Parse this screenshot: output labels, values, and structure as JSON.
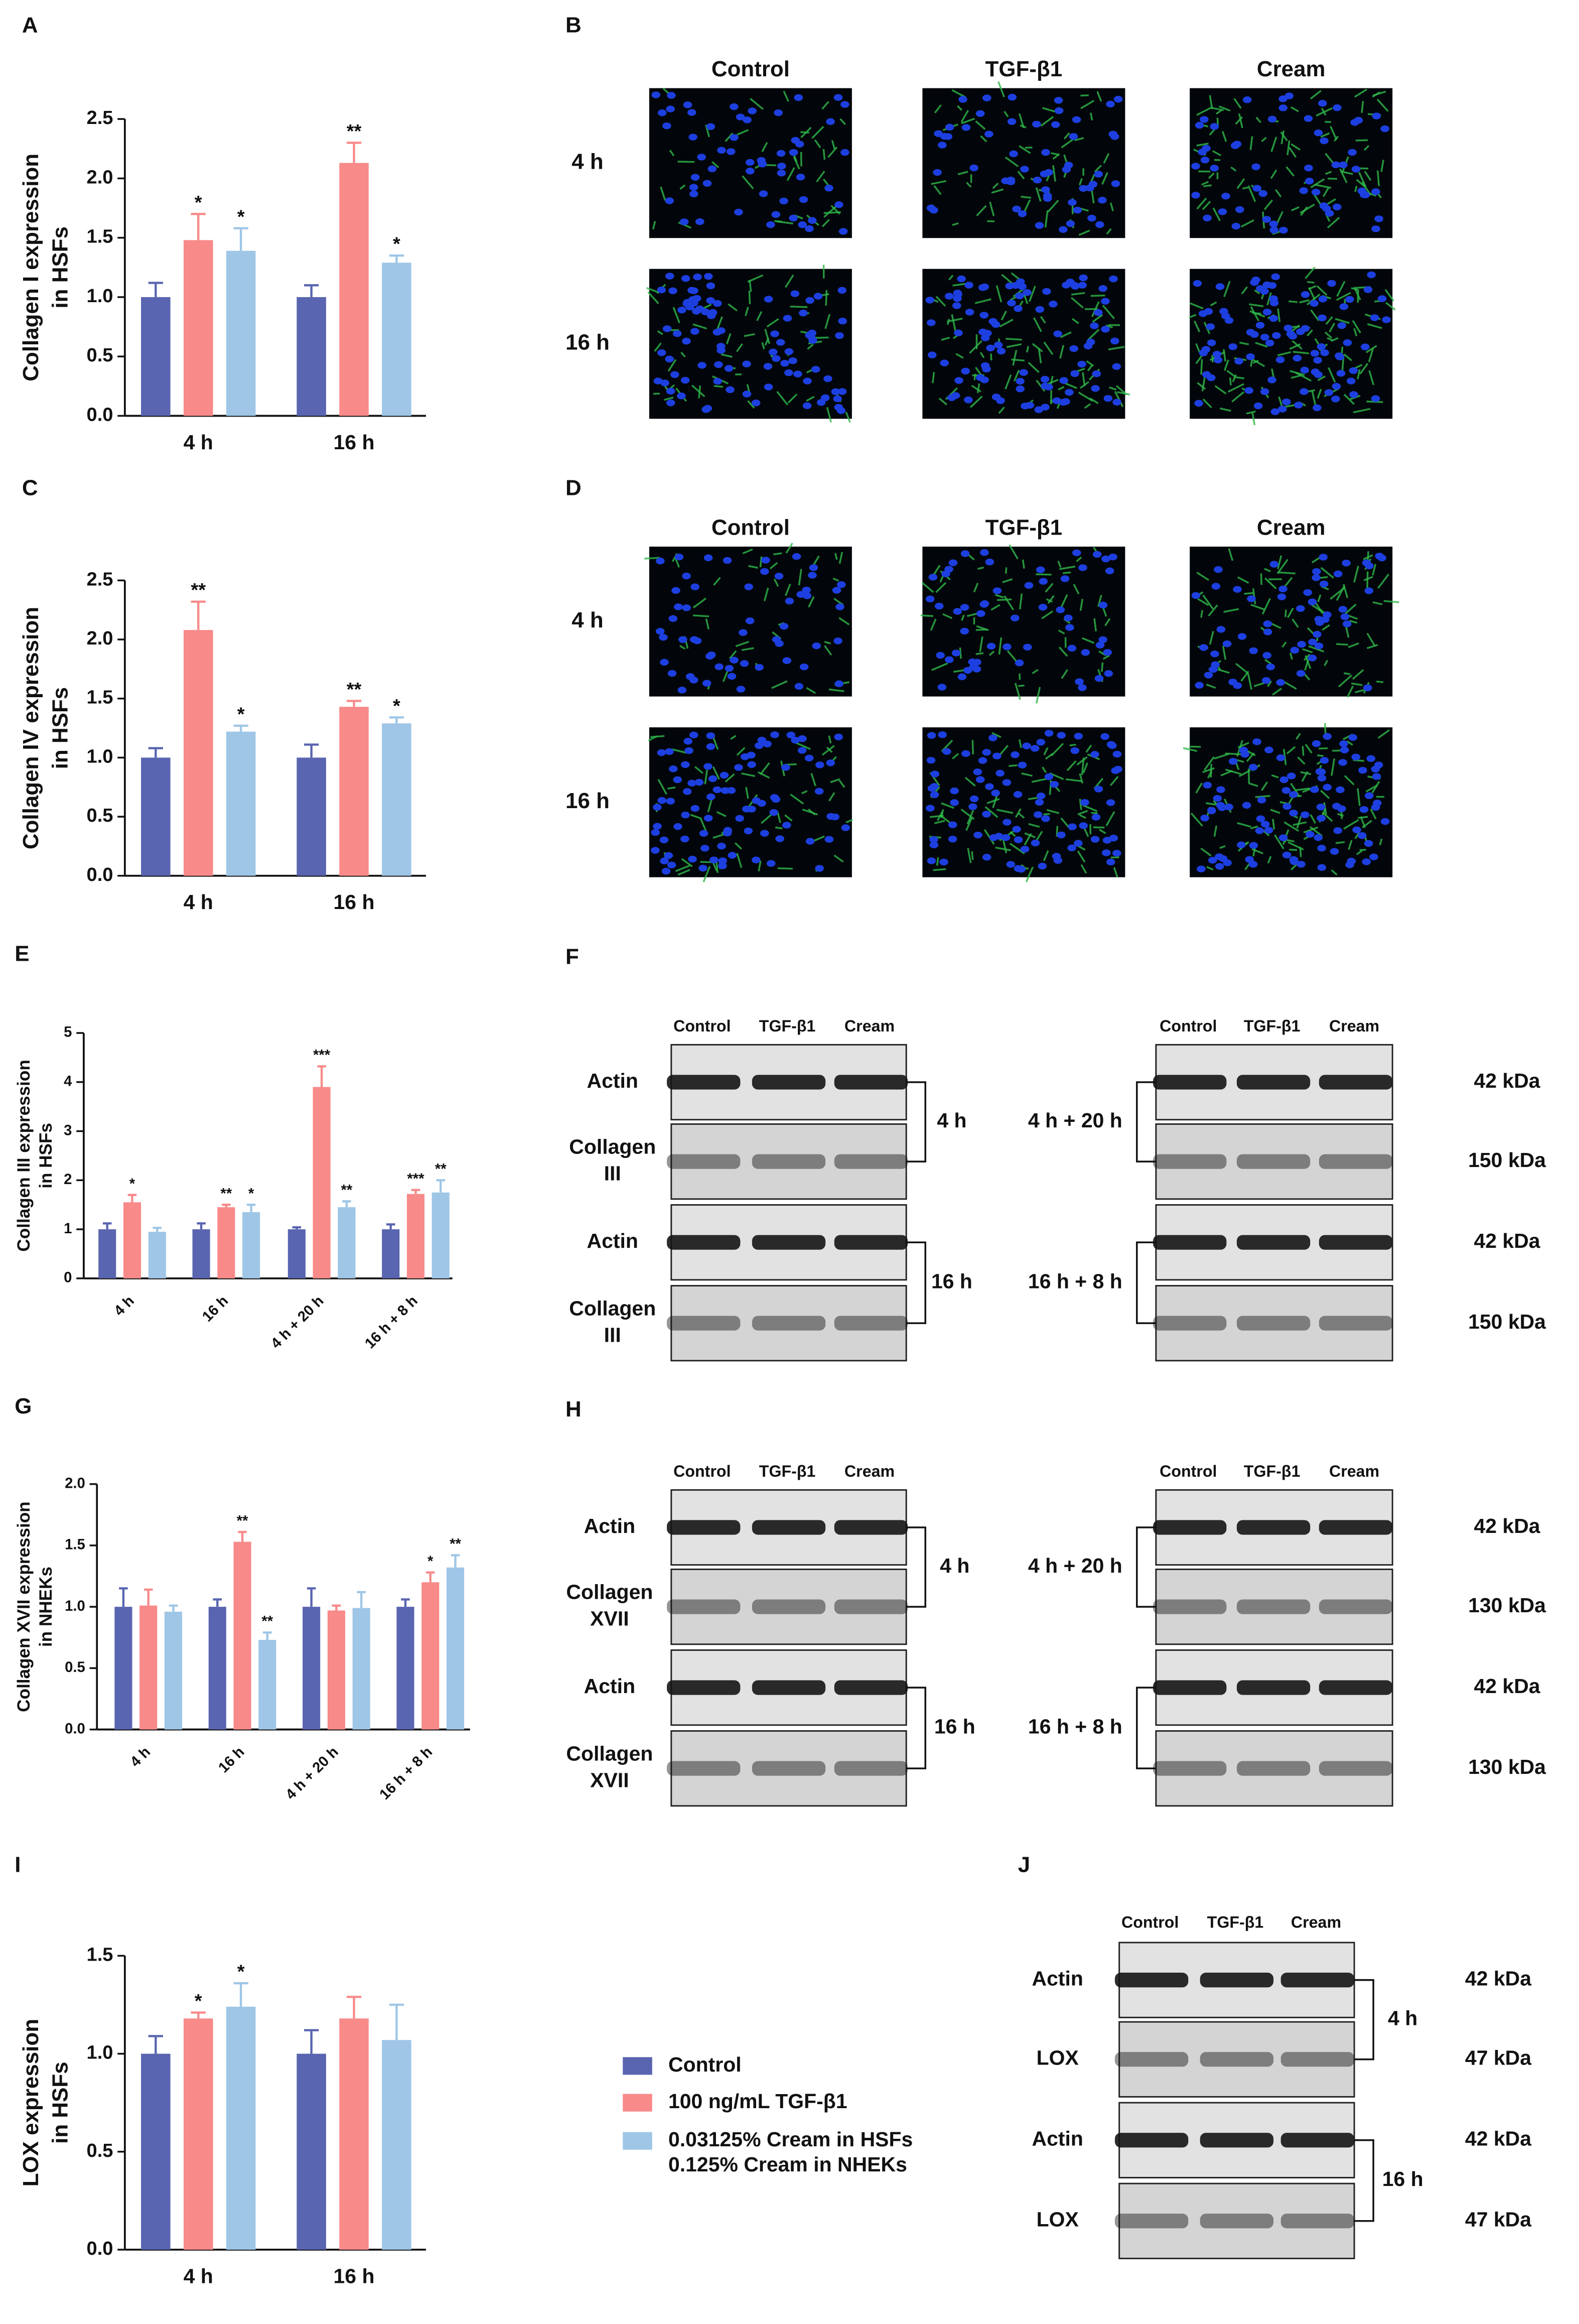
{
  "panel_labels": [
    "A",
    "B",
    "C",
    "D",
    "E",
    "F",
    "G",
    "H",
    "I",
    "J"
  ],
  "chart_data": [
    {
      "type": "bar",
      "ylabel": [
        "Collagen I expression",
        "in HSFs"
      ],
      "categories": [
        "4 h",
        "16 h"
      ],
      "ylim": [
        0,
        2.5
      ],
      "yticks": [
        {
          "value": 0,
          "label": "0.0"
        },
        {
          "value": 0.5,
          "label": "0.5"
        },
        {
          "value": 1,
          "label": "1.0"
        },
        {
          "value": 1.5,
          "label": "1.5"
        },
        {
          "value": 2,
          "label": "2.0"
        },
        2.5
      ],
      "series": [
        {
          "color": "#5965b0",
          "values": [
            1.0,
            1.0
          ],
          "errors": [
            0.12,
            0.1
          ]
        },
        {
          "color": "#f88a8a",
          "values": [
            1.48,
            2.13
          ],
          "errors": [
            0.22,
            0.17
          ],
          "labels": [
            "*",
            "**"
          ]
        },
        {
          "color": "#9fc6e6",
          "values": [
            1.39,
            1.29
          ],
          "errors": [
            0.19,
            0.06
          ],
          "labels": [
            "*",
            "*"
          ]
        }
      ]
    },
    {
      "type": "bar",
      "ylabel": [
        "Collagen IV expression",
        "in HSFs"
      ],
      "categories": [
        "4 h",
        "16 h"
      ],
      "ylim": [
        0,
        2.5
      ],
      "yticks": [
        {
          "value": 0,
          "label": "0.0"
        },
        {
          "value": 0.5,
          "label": "0.5"
        },
        {
          "value": 1,
          "label": "1.0"
        },
        {
          "value": 1.5,
          "label": "1.5"
        },
        {
          "value": 2,
          "label": "2.0"
        },
        2.5
      ],
      "series": [
        {
          "color": "#5965b0",
          "values": [
            1.0,
            1.0
          ],
          "errors": [
            0.08,
            0.11
          ]
        },
        {
          "color": "#f88a8a",
          "values": [
            2.08,
            1.43
          ],
          "errors": [
            0.24,
            0.05
          ],
          "labels": [
            "**",
            "**"
          ]
        },
        {
          "color": "#9fc6e6",
          "values": [
            1.22,
            1.29
          ],
          "errors": [
            0.05,
            0.05
          ],
          "labels": [
            "*",
            "*"
          ]
        }
      ]
    },
    {
      "type": "bar",
      "ylabel": [
        "Collagen III expression",
        "in HSFs"
      ],
      "categories": [
        "4 h",
        "16 h",
        "4 h + 20 h",
        "16 h + 8 h"
      ],
      "ylim": [
        0,
        5
      ],
      "yticks": [
        0,
        1,
        2,
        3,
        4,
        5
      ],
      "series": [
        {
          "color": "#5965b0",
          "values": [
            1.0,
            1.0,
            1.0,
            1.0
          ],
          "errors": [
            0.12,
            0.12,
            0.04,
            0.1
          ]
        },
        {
          "color": "#f88a8a",
          "values": [
            1.55,
            1.45,
            3.9,
            1.72
          ],
          "errors": [
            0.15,
            0.05,
            0.42,
            0.08
          ],
          "labels": [
            "*",
            "**",
            "***",
            "***"
          ]
        },
        {
          "color": "#9fc6e6",
          "values": [
            0.95,
            1.35,
            1.45,
            1.75
          ],
          "errors": [
            0.08,
            0.15,
            0.12,
            0.25
          ],
          "labels": [
            null,
            "*",
            "**",
            "**"
          ]
        }
      ]
    },
    {
      "type": "bar",
      "ylabel": [
        "Collagen XVII expression",
        "in NHEKs"
      ],
      "categories": [
        "4 h",
        "16 h",
        "4 h + 20 h",
        "16 h + 8 h"
      ],
      "ylim": [
        0,
        2
      ],
      "yticks": [
        {
          "value": 0,
          "label": "0.0"
        },
        {
          "value": 0.5,
          "label": "0.5"
        },
        {
          "value": 1,
          "label": "1.0"
        },
        {
          "value": 1.5,
          "label": "1.5"
        },
        {
          "value": 2,
          "label": "2.0"
        }
      ],
      "series": [
        {
          "color": "#5965b0",
          "values": [
            1.0,
            1.0,
            1.0,
            1.0
          ],
          "errors": [
            0.15,
            0.06,
            0.15,
            0.06
          ]
        },
        {
          "color": "#f88a8a",
          "values": [
            1.01,
            1.53,
            0.97,
            1.2
          ],
          "errors": [
            0.13,
            0.08,
            0.04,
            0.08
          ],
          "labels": [
            null,
            "**",
            null,
            "*"
          ]
        },
        {
          "color": "#9fc6e6",
          "values": [
            0.96,
            0.73,
            0.99,
            1.32
          ],
          "errors": [
            0.05,
            0.06,
            0.13,
            0.1
          ],
          "labels": [
            null,
            "**",
            null,
            "**"
          ]
        }
      ]
    },
    {
      "type": "bar",
      "ylabel": [
        "LOX expression",
        "in HSFs"
      ],
      "categories": [
        "4 h",
        "16 h"
      ],
      "ylim": [
        0,
        1.5
      ],
      "yticks": [
        {
          "value": 0,
          "label": "0.0"
        },
        {
          "value": 0.5,
          "label": "0.5"
        },
        {
          "value": 1,
          "label": "1.0"
        },
        1.5
      ],
      "series": [
        {
          "color": "#5965b0",
          "values": [
            1.0,
            1.0
          ],
          "errors": [
            0.09,
            0.12
          ]
        },
        {
          "color": "#f88a8a",
          "values": [
            1.18,
            1.18
          ],
          "errors": [
            0.03,
            0.11
          ],
          "labels": [
            "*",
            null
          ]
        },
        {
          "color": "#9fc6e6",
          "values": [
            1.24,
            1.07
          ],
          "errors": [
            0.12,
            0.18
          ],
          "labels": [
            "*",
            null
          ]
        }
      ]
    }
  ],
  "legend": [
    {
      "label": [
        "Control"
      ],
      "color": "#5965b0"
    },
    {
      "label": [
        "100 ng/mL TGF-β1"
      ],
      "color": "#f88a8a"
    },
    {
      "label": [
        "0.03125% Cream in HSFs",
        "0.125% Cream in NHEKs"
      ],
      "color": "#9fc6e6"
    }
  ],
  "microscopy": [
    {
      "columns": [
        "Control",
        "TGF-β1",
        "Cream"
      ],
      "rows": [
        "4 h",
        "16 h"
      ]
    },
    {
      "columns": [
        "Control",
        "TGF-β1",
        "Cream"
      ],
      "rows": [
        "4 h",
        "16 h"
      ]
    }
  ],
  "blots": [
    {
      "columns": [
        "Control",
        "TGF-β1",
        "Cream"
      ],
      "rows": [
        [
          "Actin"
        ],
        [
          "Collagen",
          "III"
        ],
        [
          "Actin"
        ],
        [
          "Collagen",
          "III"
        ]
      ],
      "times": [
        "4 h",
        "16 h"
      ]
    },
    {
      "columns": [
        "Control",
        "TGF-β1",
        "Cream"
      ],
      "times": [
        "4 h + 20 h",
        "16 h + 8 h"
      ],
      "kda": [
        "42 kDa",
        "150 kDa",
        "42 kDa",
        "150 kDa"
      ]
    },
    {
      "columns": [
        "Control",
        "TGF-β1",
        "Cream"
      ],
      "rows": [
        [
          "Actin"
        ],
        [
          "Collagen",
          "XVII"
        ],
        [
          "Actin"
        ],
        [
          "Collagen",
          "XVII"
        ]
      ],
      "times": [
        "4 h",
        "16 h"
      ]
    },
    {
      "columns": [
        "Control",
        "TGF-β1",
        "Cream"
      ],
      "times": [
        "4 h + 20 h",
        "16 h + 8 h"
      ],
      "kda": [
        "42 kDa",
        "130 kDa",
        "42 kDa",
        "130 kDa"
      ]
    },
    {
      "columns": [
        "Control",
        "TGF-β1",
        "Cream"
      ],
      "rows": [
        [
          "Actin"
        ],
        [
          "LOX"
        ],
        [
          "Actin"
        ],
        [
          "LOX"
        ]
      ],
      "times": [
        "4 h",
        "16 h"
      ],
      "kda": [
        "42 kDa",
        "47 kDa",
        "42 kDa",
        "47 kDa"
      ]
    }
  ]
}
